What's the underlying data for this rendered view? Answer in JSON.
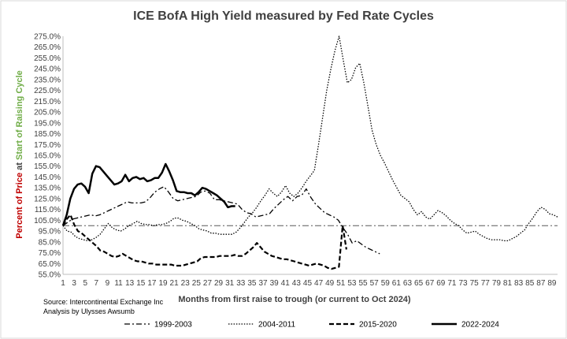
{
  "chart_data": {
    "type": "line",
    "title": "ICE BofA High Yield  measured by Fed Rate Cycles",
    "xlabel": "Months from first raise to trough (or current to Oct 2024)",
    "ylabel_parts": [
      {
        "text": "Percent of Price",
        "color": "#c00000"
      },
      {
        "text": " at ",
        "color": "#404040"
      },
      {
        "text": "Start of Raising Cycle",
        "color": "#70ad47"
      }
    ],
    "xlim": [
      1,
      90
    ],
    "ylim": [
      55,
      275
    ],
    "y_ticks": [
      "55.0%",
      "65.0%",
      "75.0%",
      "85.0%",
      "95.0%",
      "105.0%",
      "115.0%",
      "125.0%",
      "135.0%",
      "145.0%",
      "155.0%",
      "165.0%",
      "175.0%",
      "185.0%",
      "195.0%",
      "205.0%",
      "215.0%",
      "225.0%",
      "235.0%",
      "245.0%",
      "255.0%",
      "265.0%",
      "275.0%"
    ],
    "x_ticks": [
      "1",
      "3",
      "5",
      "7",
      "9",
      "11",
      "13",
      "15",
      "17",
      "19",
      "21",
      "23",
      "25",
      "27",
      "29",
      "31",
      "33",
      "35",
      "37",
      "39",
      "41",
      "43",
      "45",
      "47",
      "49",
      "51",
      "53",
      "55",
      "57",
      "59",
      "61",
      "63",
      "65",
      "67",
      "69",
      "71",
      "73",
      "75",
      "77",
      "79",
      "81",
      "83",
      "85",
      "87",
      "89"
    ],
    "reference_line": 100,
    "series": [
      {
        "name": "1999-2003",
        "style": "dashdot",
        "values": [
          100,
          103,
          106,
          107,
          108,
          109,
          110,
          109,
          110,
          112,
          114,
          116,
          118,
          120,
          122,
          121,
          121,
          121,
          122,
          126,
          131,
          134,
          136,
          131,
          125,
          123,
          124,
          125,
          126,
          127,
          131,
          132,
          130,
          124,
          124,
          123,
          122,
          121,
          120,
          115,
          112,
          111,
          108,
          109,
          110,
          111,
          116,
          120,
          124,
          127,
          123,
          127,
          128,
          134,
          126,
          120,
          116,
          112,
          110,
          108,
          105,
          98,
          92,
          84,
          86,
          83,
          80,
          78,
          76,
          74
        ]
      },
      {
        "name": "2004-2011",
        "style": "dotted",
        "values": [
          100,
          95,
          94,
          90,
          88,
          87,
          86,
          87,
          89,
          92,
          97,
          102,
          98,
          96,
          95,
          97,
          100,
          102,
          104,
          102,
          101,
          101,
          100,
          101,
          101,
          102,
          104,
          107,
          107,
          105,
          104,
          102,
          100,
          97,
          96,
          95,
          93,
          93,
          92,
          92,
          92,
          92,
          94,
          98,
          103,
          108,
          112,
          117,
          123,
          128,
          134,
          130,
          127,
          131,
          137,
          130,
          127,
          130,
          135,
          141,
          146,
          151,
          175,
          200,
          225,
          245,
          262,
          275,
          253,
          232,
          235,
          246,
          250,
          232,
          210,
          188,
          175,
          165,
          158,
          150,
          142,
          135,
          128,
          125,
          122,
          115,
          110,
          113,
          108,
          106,
          110,
          114,
          112,
          109,
          105,
          102,
          100,
          96,
          93,
          94,
          95,
          92,
          90,
          88,
          87,
          87,
          87,
          86,
          86,
          88,
          90,
          93,
          96,
          102,
          107,
          113,
          117,
          115,
          111,
          110,
          108
        ]
      },
      {
        "name": "2015-2020",
        "style": "dashed",
        "values": [
          100,
          106,
          110,
          101,
          95,
          93,
          90,
          87,
          84,
          81,
          77,
          76,
          74,
          72,
          71,
          72,
          74,
          72,
          70,
          68,
          67,
          67,
          66,
          65,
          65,
          64,
          64,
          64,
          64,
          64,
          63,
          63,
          63,
          64,
          65,
          66,
          67,
          70,
          71,
          71,
          71,
          71,
          72,
          72,
          72,
          72,
          73,
          72,
          72,
          74,
          77,
          80,
          84,
          80,
          76,
          74,
          72,
          71,
          70,
          69,
          69,
          68,
          67,
          66,
          65,
          64,
          63,
          64,
          65,
          64,
          63,
          61,
          60,
          61,
          62,
          100,
          78
        ]
      },
      {
        "name": "2022-2024",
        "style": "solid",
        "values": [
          100,
          110,
          125,
          134,
          138,
          139,
          136,
          130,
          148,
          155,
          154,
          150,
          146,
          142,
          138,
          139,
          141,
          147,
          141,
          144,
          145,
          143,
          144,
          141,
          142,
          144,
          144,
          149,
          157,
          150,
          142,
          132,
          131,
          131,
          130,
          130,
          128,
          131,
          135,
          134,
          132,
          130,
          128,
          125,
          122,
          117,
          118,
          118
        ]
      }
    ],
    "source_lines": [
      "Source: Intercontinental Exchange Inc",
      "Analysis by Ulysses Awsumb"
    ]
  }
}
